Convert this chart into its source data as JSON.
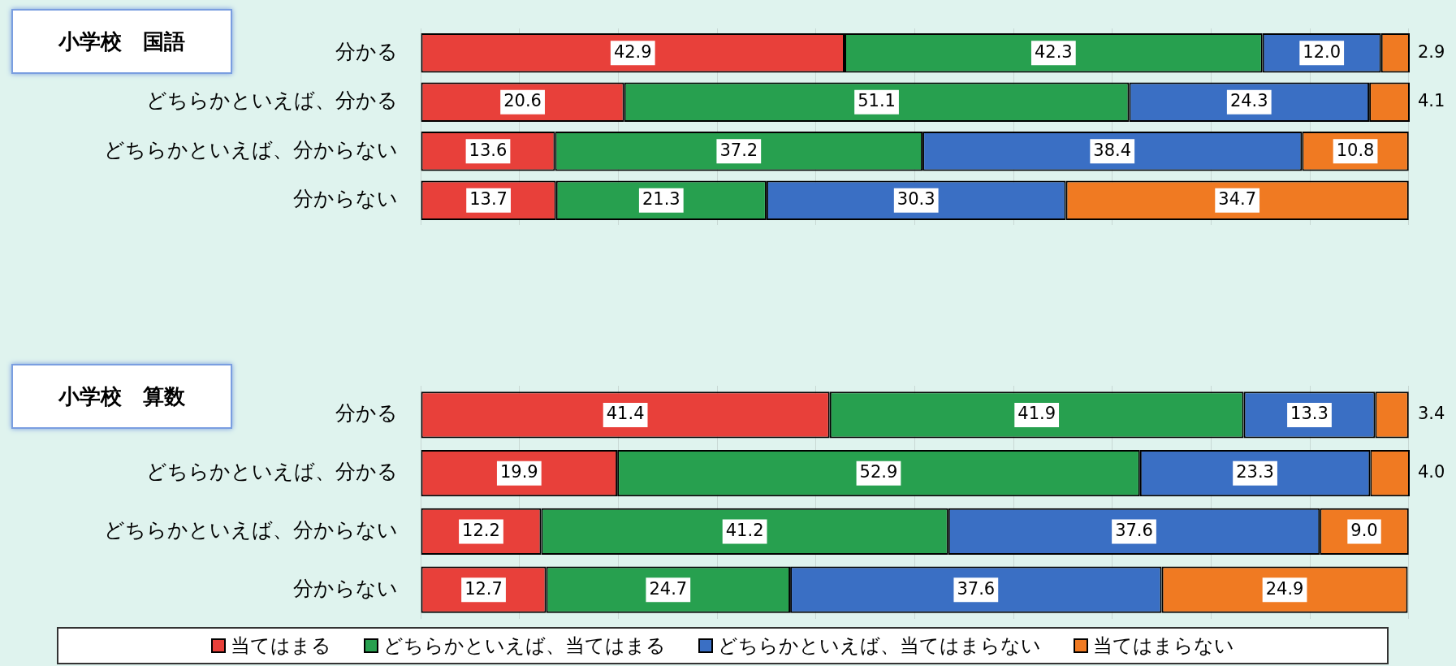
{
  "chart_data": [
    {
      "type": "bar",
      "title": "小学校　国語",
      "orientation": "horizontal",
      "stacked": true,
      "categories": [
        "分かる",
        "どちらかといえば、分かる",
        "どちらかといえば、分からない",
        "分からない"
      ],
      "series": [
        {
          "color": "#e8403a",
          "values": [
            42.9,
            20.6,
            13.6,
            13.7
          ],
          "value_labels": [
            "42.9",
            "20.6",
            "13.6",
            "13.7"
          ]
        },
        {
          "color": "#27a04f",
          "values": [
            42.3,
            51.1,
            37.2,
            21.3
          ],
          "value_labels": [
            "42.3",
            "51.1",
            "37.2",
            "21.3"
          ]
        },
        {
          "color": "#3a6fc4",
          "values": [
            12.0,
            24.3,
            38.4,
            30.3
          ],
          "value_labels": [
            "12.0",
            "24.3",
            "38.4",
            "30.3"
          ]
        },
        {
          "color": "#f07a22",
          "values": [
            2.9,
            4.1,
            10.8,
            34.7
          ],
          "value_labels": [
            "2.9",
            "4.1",
            "10.8",
            "34.7"
          ]
        }
      ],
      "xlim": [
        0,
        100.1
      ],
      "xticks": [
        {
          "value": 0,
          "label": null
        },
        {
          "value": 10,
          "label": null
        },
        {
          "value": 20,
          "label": null
        },
        {
          "value": 30,
          "label": null
        },
        {
          "value": 40,
          "label": null
        },
        {
          "value": 50,
          "label": null
        },
        {
          "value": 60,
          "label": null
        },
        {
          "value": 70,
          "label": null
        },
        {
          "value": 80,
          "label": null
        },
        {
          "value": 90,
          "label": null
        },
        {
          "value": 100,
          "label": null
        }
      ],
      "grid": "x",
      "tick_labels": "y",
      "legend": false
    },
    {
      "type": "bar",
      "title": "小学校　算数",
      "orientation": "horizontal",
      "stacked": true,
      "categories": [
        "分かる",
        "どちらかといえば、分かる",
        "どちらかといえば、分からない",
        "分からない"
      ],
      "series": [
        {
          "name": "当てはまる",
          "color": "#e8403a",
          "values": [
            41.4,
            19.9,
            12.2,
            12.7
          ],
          "value_labels": [
            "41.4",
            "19.9",
            "12.2",
            "12.7"
          ]
        },
        {
          "name": "どちらかといえば、当てはまる",
          "color": "#27a04f",
          "values": [
            41.9,
            52.9,
            41.2,
            24.7
          ],
          "value_labels": [
            "41.9",
            "52.9",
            "41.2",
            "24.7"
          ]
        },
        {
          "name": "どちらかといえば、当てはまらない",
          "color": "#3a6fc4",
          "values": [
            13.3,
            23.3,
            37.6,
            37.6
          ],
          "value_labels": [
            "13.3",
            "23.3",
            "37.6",
            "37.6"
          ]
        },
        {
          "name": "当てはまらない",
          "color": "#f07a22",
          "values": [
            3.4,
            4.0,
            9.0,
            24.9
          ],
          "value_labels": [
            "3.4",
            "4.0",
            "9.0",
            "24.9"
          ]
        }
      ],
      "xlim": [
        0,
        100.1
      ],
      "xticks": [
        {
          "value": 0,
          "label": null
        },
        {
          "value": 10,
          "label": null
        },
        {
          "value": 20,
          "label": null
        },
        {
          "value": 30,
          "label": null
        },
        {
          "value": 40,
          "label": null
        },
        {
          "value": 50,
          "label": null
        },
        {
          "value": 60,
          "label": null
        },
        {
          "value": 70,
          "label": null
        },
        {
          "value": 80,
          "label": null
        },
        {
          "value": 90,
          "label": null
        },
        {
          "value": 100,
          "label": null
        }
      ],
      "grid": "x",
      "tick_labels": "y",
      "legend": "bottom"
    }
  ]
}
